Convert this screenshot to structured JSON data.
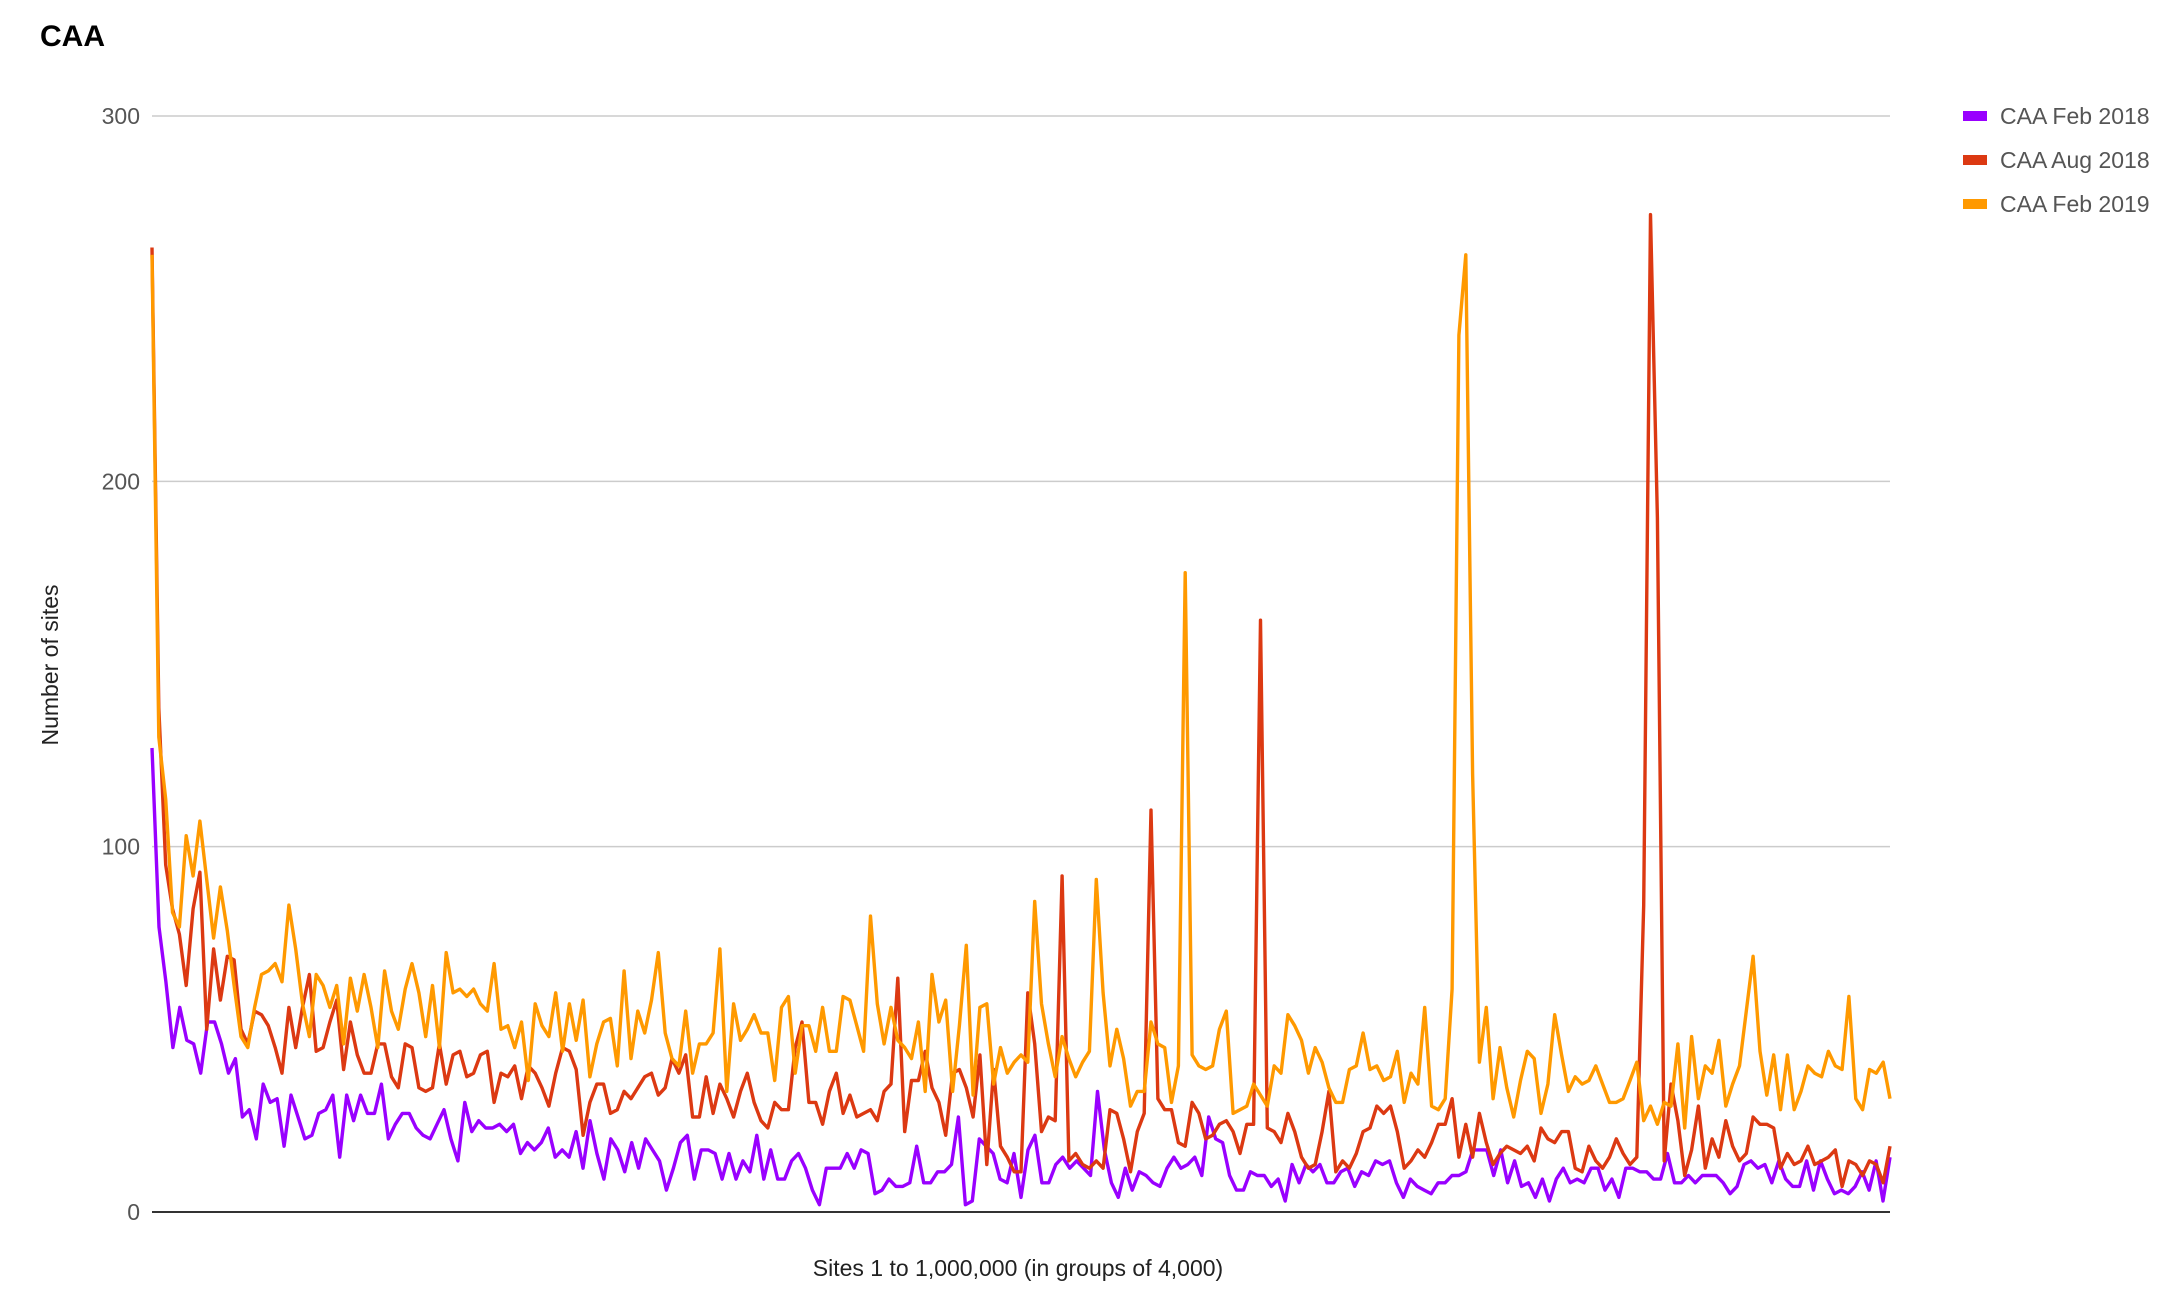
{
  "chart_data": {
    "type": "line",
    "title": "CAA",
    "xlabel": "Sites 1 to 1,000,000 (in groups of 4,000)",
    "ylabel": "Number of sites",
    "ylim": [
      0,
      300
    ],
    "yticks": [
      0,
      100,
      200,
      300
    ],
    "grid": true,
    "legend_position": "right",
    "x_start": 1,
    "x_end": 250,
    "series": [
      {
        "name": "CAA Feb 2018",
        "color": "#9900ff",
        "values": [
          127,
          78,
          63,
          45,
          56,
          47,
          46,
          38,
          52,
          52,
          46,
          38,
          42,
          26,
          28,
          20,
          35,
          30,
          31,
          18,
          32,
          26,
          20,
          21,
          27,
          28,
          32,
          15,
          32,
          25,
          32,
          27,
          27,
          35,
          20,
          24,
          27,
          27,
          23,
          21,
          20,
          24,
          28,
          20,
          14,
          30,
          22,
          25,
          23,
          23,
          24,
          22,
          24,
          16,
          19,
          17,
          19,
          23,
          15,
          17,
          15,
          22,
          12,
          25,
          16,
          9,
          20,
          17,
          11,
          19,
          12,
          20,
          17,
          14,
          6,
          12,
          19,
          21,
          9,
          17,
          17,
          16,
          9,
          16,
          9,
          14,
          11,
          21,
          9,
          17,
          9,
          9,
          14,
          16,
          12,
          6,
          2,
          12,
          12,
          12,
          16,
          12,
          17,
          16,
          5,
          6,
          9,
          7,
          7,
          8,
          18,
          8,
          8,
          11,
          11,
          13,
          26,
          2,
          3,
          20,
          18,
          16,
          9,
          8,
          16,
          4,
          17,
          21,
          8,
          8,
          13,
          15,
          12,
          14,
          12,
          10,
          33,
          17,
          8,
          4,
          12,
          6,
          11,
          10,
          8,
          7,
          12,
          15,
          12,
          13,
          15,
          10,
          26,
          20,
          19,
          10,
          6,
          6,
          11,
          10,
          10,
          7,
          9,
          3,
          13,
          8,
          13,
          11,
          13,
          8,
          8,
          11,
          12,
          7,
          11,
          10,
          14,
          13,
          14,
          8,
          4,
          9,
          7,
          6,
          5,
          8,
          8,
          10,
          10,
          11,
          17,
          17,
          17,
          10,
          17,
          8,
          14,
          7,
          8,
          4,
          9,
          3,
          9,
          12,
          8,
          9,
          8,
          12,
          12,
          6,
          9,
          4,
          12,
          12,
          11,
          11,
          9,
          9,
          16,
          8,
          8,
          10,
          8,
          10,
          10,
          10,
          8,
          5,
          7,
          13,
          14,
          12,
          13,
          8,
          14,
          9,
          7,
          7,
          14,
          6,
          14,
          9,
          5,
          6,
          5,
          7,
          11,
          6,
          14,
          3,
          15
        ]
      },
      {
        "name": "CAA Aug 2018",
        "color": "#dc3912",
        "values": [
          264,
          138,
          95,
          83,
          76,
          62,
          83,
          93,
          50,
          72,
          58,
          70,
          69,
          50,
          46,
          55,
          54,
          51,
          45,
          38,
          56,
          45,
          56,
          65,
          44,
          45,
          52,
          58,
          39,
          52,
          43,
          38,
          38,
          46,
          46,
          37,
          34,
          46,
          45,
          34,
          33,
          34,
          46,
          35,
          43,
          44,
          37,
          38,
          43,
          44,
          30,
          38,
          37,
          40,
          31,
          40,
          38,
          34,
          29,
          38,
          45,
          44,
          39,
          21,
          30,
          35,
          35,
          27,
          28,
          33,
          31,
          34,
          37,
          38,
          32,
          34,
          42,
          38,
          43,
          26,
          26,
          37,
          27,
          35,
          31,
          26,
          33,
          38,
          30,
          25,
          23,
          30,
          28,
          28,
          45,
          52,
          30,
          30,
          24,
          33,
          38,
          27,
          32,
          26,
          27,
          28,
          25,
          33,
          35,
          64,
          22,
          36,
          36,
          44,
          34,
          30,
          21,
          38,
          39,
          34,
          26,
          43,
          13,
          39,
          18,
          15,
          11,
          11,
          60,
          46,
          22,
          26,
          25,
          92,
          14,
          16,
          13,
          12,
          14,
          12,
          28,
          27,
          20,
          11,
          22,
          27,
          110,
          31,
          28,
          28,
          19,
          18,
          30,
          27,
          20,
          21,
          24,
          25,
          22,
          16,
          24,
          24,
          162,
          23,
          22,
          19,
          27,
          22,
          15,
          12,
          13,
          22,
          33,
          11,
          14,
          12,
          16,
          22,
          23,
          29,
          27,
          29,
          22,
          12,
          14,
          17,
          15,
          19,
          24,
          24,
          31,
          15,
          24,
          15,
          27,
          19,
          13,
          16,
          18,
          17,
          16,
          18,
          14,
          23,
          20,
          19,
          22,
          22,
          12,
          11,
          18,
          14,
          12,
          15,
          20,
          16,
          13,
          15,
          84,
          273,
          190,
          14,
          35,
          25,
          10,
          17,
          29,
          12,
          20,
          15,
          25,
          18,
          14,
          16,
          26,
          24,
          24,
          23,
          12,
          16,
          13,
          14,
          18,
          13,
          14,
          15,
          17,
          7,
          14,
          13,
          10,
          14,
          13,
          8,
          18
        ]
      },
      {
        "name": "CAA Feb 2019",
        "color": "#ff9900",
        "values": [
          262,
          130,
          113,
          82,
          78,
          103,
          92,
          107,
          91,
          75,
          89,
          77,
          62,
          48,
          45,
          56,
          65,
          66,
          68,
          63,
          84,
          72,
          57,
          48,
          65,
          62,
          56,
          62,
          46,
          64,
          55,
          65,
          56,
          45,
          66,
          55,
          50,
          61,
          68,
          60,
          48,
          62,
          45,
          71,
          60,
          61,
          59,
          61,
          57,
          55,
          68,
          50,
          51,
          45,
          52,
          36,
          57,
          51,
          48,
          60,
          44,
          57,
          47,
          58,
          37,
          46,
          52,
          53,
          40,
          66,
          42,
          55,
          49,
          58,
          71,
          49,
          42,
          40,
          55,
          38,
          46,
          46,
          49,
          72,
          33,
          57,
          47,
          50,
          54,
          49,
          49,
          36,
          56,
          59,
          38,
          51,
          51,
          44,
          56,
          44,
          44,
          59,
          58,
          51,
          44,
          81,
          57,
          46,
          56,
          47,
          45,
          42,
          52,
          33,
          65,
          52,
          58,
          33,
          51,
          73,
          32,
          56,
          57,
          35,
          45,
          38,
          41,
          43,
          41,
          85,
          57,
          46,
          37,
          48,
          42,
          37,
          41,
          44,
          91,
          60,
          40,
          50,
          42,
          29,
          33,
          33,
          52,
          46,
          45,
          30,
          40,
          175,
          43,
          40,
          39,
          40,
          50,
          55,
          27,
          28,
          29,
          35,
          32,
          29,
          40,
          38,
          54,
          51,
          47,
          38,
          45,
          41,
          34,
          30,
          30,
          39,
          40,
          49,
          39,
          40,
          36,
          37,
          44,
          30,
          38,
          35,
          56,
          29,
          28,
          31,
          61,
          240,
          262,
          120,
          41,
          56,
          31,
          45,
          34,
          26,
          36,
          44,
          42,
          27,
          35,
          54,
          43,
          33,
          37,
          35,
          36,
          40,
          35,
          30,
          30,
          31,
          36,
          41,
          25,
          29,
          24,
          30,
          29,
          46,
          23,
          48,
          31,
          40,
          38,
          47,
          29,
          35,
          40,
          55,
          70,
          44,
          32,
          43,
          28,
          43,
          28,
          33,
          40,
          38,
          37,
          44,
          40,
          39,
          59,
          31,
          28,
          39,
          38,
          41,
          31
        ]
      }
    ]
  }
}
